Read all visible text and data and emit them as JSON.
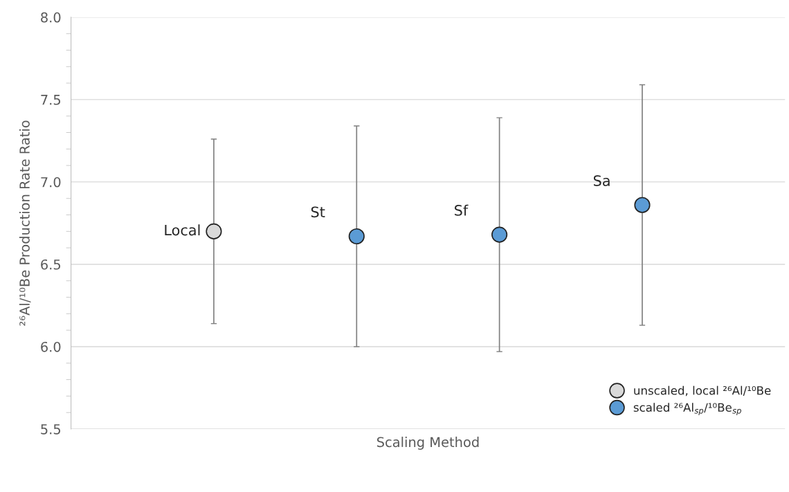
{
  "chart_data": {
    "type": "scatter",
    "xlabel": "Scaling Method",
    "ylabel": "²⁶Al/¹⁰Be Production Rate Ratio",
    "categories": [
      null,
      null,
      null,
      null
    ],
    "ylim": [
      5.5,
      8.0
    ],
    "yticks": [
      5.5,
      {
        "value": 5.6,
        "label": null
      },
      {
        "value": 5.7,
        "label": null
      },
      {
        "value": 5.8,
        "label": null
      },
      {
        "value": 5.9,
        "label": null
      },
      {
        "value": 6,
        "label": "6.0"
      },
      {
        "value": 6.1,
        "label": null
      },
      {
        "value": 6.2,
        "label": null
      },
      {
        "value": 6.3,
        "label": null
      },
      {
        "value": 6.4,
        "label": null
      },
      6.5,
      {
        "value": 6.6,
        "label": null
      },
      {
        "value": 6.7,
        "label": null
      },
      {
        "value": 6.8,
        "label": null
      },
      {
        "value": 6.9,
        "label": null
      },
      {
        "value": 7,
        "label": "7.0"
      },
      {
        "value": 7.1,
        "label": null
      },
      {
        "value": 7.2,
        "label": null
      },
      {
        "value": 7.3,
        "label": null
      },
      {
        "value": 7.4,
        "label": null
      },
      7.5,
      {
        "value": 7.6,
        "label": null
      },
      {
        "value": 7.7,
        "label": null
      },
      {
        "value": 7.8,
        "label": null
      },
      {
        "value": 7.9,
        "label": null
      },
      {
        "value": 8,
        "label": "8.0"
      }
    ],
    "grid": "y",
    "marker": "circle",
    "legend": "bottom right",
    "series": [
      {
        "name": "unscaled, local ²⁶Al/¹⁰Be",
        "color": "#d9d9d9",
        "values": [
          6.7,
          null,
          null,
          null
        ],
        "errors": [
          0.56,
          null,
          null,
          null
        ]
      },
      {
        "name": "scaled ²⁶Al$_{sp}$/¹⁰Be$_{sp}$",
        "color": "#5b9bd5",
        "values": [
          null,
          6.67,
          6.68,
          6.86
        ],
        "errors": [
          null,
          0.67,
          0.71,
          0.73
        ]
      }
    ],
    "annotations": [
      "Local",
      "St",
      "Sf",
      "Sa"
    ]
  }
}
